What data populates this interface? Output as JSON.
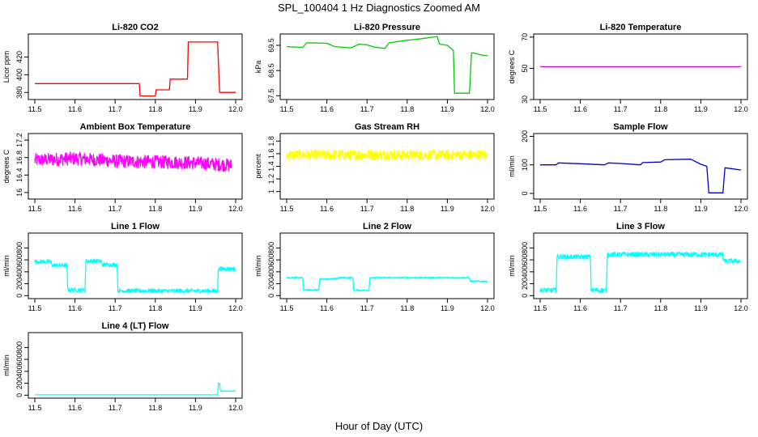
{
  "figure": {
    "title": "SPL_100404  1 Hz Diagnostics Zoomed AM",
    "xlabel": "Hour of Day (UTC)"
  },
  "chart_data": [
    {
      "type": "line",
      "title": "Li-820 CO2",
      "ylabel": "Licor ppm",
      "color": "#ff0000",
      "xlim": [
        11.5,
        12.0
      ],
      "ylim": [
        372,
        446
      ],
      "xticks": [
        "11.5",
        "11.6",
        "11.7",
        "11.8",
        "11.9",
        "12.0"
      ],
      "yticks": [
        380,
        400,
        420
      ],
      "x": [
        11.5,
        11.76,
        11.762,
        11.8,
        11.802,
        11.835,
        11.837,
        11.88,
        11.882,
        11.955,
        11.96,
        11.965,
        12.0
      ],
      "y": [
        390,
        390,
        376,
        376,
        383,
        383,
        395,
        395,
        437,
        437,
        380,
        380,
        380
      ]
    },
    {
      "type": "line",
      "title": "Li-820 Pressure",
      "ylabel": "kPa",
      "color": "#00cc00",
      "xlim": [
        11.5,
        12.0
      ],
      "ylim": [
        67.35,
        69.95
      ],
      "xticks": [
        "11.5",
        "11.6",
        "11.7",
        "11.8",
        "11.9",
        "12.0"
      ],
      "yticks": [
        67.5,
        68.5,
        69.5
      ],
      "x": [
        11.5,
        11.54,
        11.55,
        11.6,
        11.62,
        11.66,
        11.68,
        11.7,
        11.72,
        11.745,
        11.755,
        11.8,
        11.83,
        11.86,
        11.875,
        11.88,
        11.9,
        11.915,
        11.918,
        11.925,
        11.955,
        11.96,
        11.965,
        11.99,
        12.0
      ],
      "y": [
        69.45,
        69.42,
        69.6,
        69.58,
        69.45,
        69.4,
        69.55,
        69.52,
        69.42,
        69.38,
        69.6,
        69.7,
        69.75,
        69.82,
        69.85,
        69.55,
        69.5,
        69.3,
        67.6,
        67.6,
        67.6,
        69.2,
        69.2,
        69.1,
        69.1
      ]
    },
    {
      "type": "line",
      "title": "Li-820 Temperature",
      "ylabel": "degrees C",
      "color": "#cc00cc",
      "xlim": [
        11.5,
        12.0
      ],
      "ylim": [
        30,
        72
      ],
      "xticks": [
        "11.5",
        "11.6",
        "11.7",
        "11.8",
        "11.9",
        "12.0"
      ],
      "yticks": [
        30,
        50,
        70
      ],
      "x": [
        11.5,
        12.0
      ],
      "y": [
        51,
        51
      ]
    },
    {
      "type": "line",
      "title": "Ambient Box Temperature",
      "ylabel": "degrees C",
      "color": "#ff00ff",
      "xlim": [
        11.5,
        12.0
      ],
      "ylim": [
        15.85,
        17.35
      ],
      "xticks": [
        "11.5",
        "11.6",
        "11.7",
        "11.8",
        "11.9",
        "12.0"
      ],
      "yticks": [
        16.0,
        16.4,
        16.8,
        17.2
      ],
      "x": [
        11.5,
        11.6,
        11.7,
        11.8,
        11.9,
        11.99
      ],
      "y": [
        16.74,
        16.78,
        16.72,
        16.7,
        16.68,
        16.62
      ],
      "noise_band": 0.15
    },
    {
      "type": "line",
      "title": "Gas Stream RH",
      "ylabel": "percent",
      "color": "#ffff00",
      "xlim": [
        11.5,
        12.0
      ],
      "ylim": [
        0.88,
        1.92
      ],
      "xticks": [
        "11.5",
        "11.6",
        "11.7",
        "11.8",
        "11.9",
        "12.0"
      ],
      "yticks": [
        1.0,
        1.2,
        1.4,
        1.6,
        1.8
      ],
      "x": [
        11.5,
        12.0
      ],
      "y": [
        1.58,
        1.58
      ],
      "noise_band": 0.08
    },
    {
      "type": "line",
      "title": "Sample Flow",
      "ylabel": "ml/min",
      "color": "#0000cc",
      "xlim": [
        11.5,
        12.0
      ],
      "ylim": [
        -20,
        210
      ],
      "xticks": [
        "11.5",
        "11.6",
        "11.7",
        "11.8",
        "11.9",
        "12.0"
      ],
      "yticks": [
        0,
        100,
        200
      ],
      "x": [
        11.5,
        11.54,
        11.545,
        11.6,
        11.66,
        11.67,
        11.7,
        11.75,
        11.755,
        11.8,
        11.81,
        11.875,
        11.9,
        11.915,
        11.92,
        11.955,
        11.96,
        11.975,
        12.0
      ],
      "y": [
        100,
        100,
        107,
        104,
        100,
        107,
        105,
        100,
        108,
        110,
        118,
        120,
        102,
        95,
        2,
        2,
        90,
        87,
        82
      ]
    },
    {
      "type": "line",
      "title": "Line 1 Flow",
      "ylabel": "ml/min",
      "color": "#00ffff",
      "xlim": [
        11.5,
        12.0
      ],
      "ylim": [
        -50,
        1050
      ],
      "xticks": [
        "11.5",
        "11.6",
        "11.7",
        "11.8",
        "11.9",
        "12.0"
      ],
      "yticks": [
        0,
        200,
        400,
        600,
        800
      ],
      "x": [
        11.5,
        11.54,
        11.542,
        11.58,
        11.582,
        11.625,
        11.627,
        11.665,
        11.667,
        11.705,
        11.707,
        11.955,
        11.957,
        12.0
      ],
      "y": [
        570,
        570,
        510,
        510,
        95,
        95,
        580,
        580,
        520,
        520,
        80,
        80,
        450,
        450
      ],
      "noise_band": 35
    },
    {
      "type": "line",
      "title": "Line 2 Flow",
      "ylabel": "ml/min",
      "color": "#00ffff",
      "xlim": [
        11.5,
        12.0
      ],
      "ylim": [
        -50,
        1050
      ],
      "xticks": [
        "11.5",
        "11.6",
        "11.7",
        "11.8",
        "11.9",
        "12.0"
      ],
      "yticks": [
        0,
        200,
        400,
        600,
        800
      ],
      "x": [
        11.5,
        11.54,
        11.542,
        11.58,
        11.582,
        11.625,
        11.627,
        11.665,
        11.667,
        11.705,
        11.707,
        11.955,
        11.957,
        12.0
      ],
      "y": [
        300,
        300,
        95,
        95,
        280,
        280,
        300,
        300,
        90,
        90,
        300,
        300,
        240,
        240
      ],
      "noise_band": 12
    },
    {
      "type": "line",
      "title": "Line 3 Flow",
      "ylabel": "ml/min",
      "color": "#00ffff",
      "xlim": [
        11.5,
        12.0
      ],
      "ylim": [
        -50,
        1050
      ],
      "xticks": [
        "11.5",
        "11.6",
        "11.7",
        "11.8",
        "11.9",
        "12.0"
      ],
      "yticks": [
        0,
        200,
        400,
        600,
        800
      ],
      "x": [
        11.5,
        11.54,
        11.542,
        11.625,
        11.627,
        11.665,
        11.667,
        11.955,
        11.957,
        12.0
      ],
      "y": [
        90,
        90,
        650,
        650,
        90,
        90,
        690,
        690,
        580,
        580
      ],
      "noise_band": 40
    },
    {
      "type": "line",
      "title": "Line 4 (LT) Flow",
      "ylabel": "ml/min",
      "color": "#00ffff",
      "xlim": [
        11.5,
        12.0
      ],
      "ylim": [
        -50,
        1050
      ],
      "xticks": [
        "11.5",
        "11.6",
        "11.7",
        "11.8",
        "11.9",
        "12.0"
      ],
      "yticks": [
        0,
        200,
        400,
        600,
        800
      ],
      "x": [
        11.5,
        11.955,
        11.957,
        11.96,
        11.962,
        12.0
      ],
      "y": [
        5,
        5,
        200,
        200,
        70,
        70
      ]
    }
  ]
}
